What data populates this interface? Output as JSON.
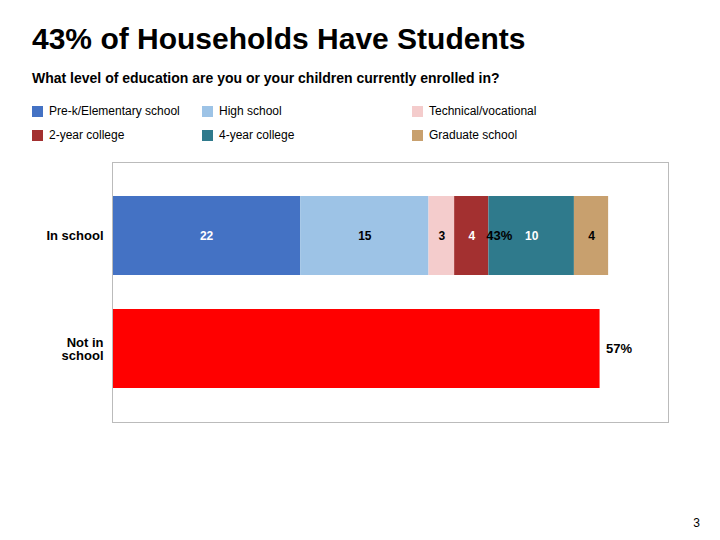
{
  "chart_data": {
    "type": "bar",
    "orientation": "horizontal",
    "stacked": true,
    "title": "43% of Households Have Students",
    "subtitle": "What level of education are you or your children currently enrolled in?",
    "categories": [
      "In school",
      "Not in\nschool"
    ],
    "series": [
      {
        "name": "Pre-k/Elementary school",
        "color": "#4472C4",
        "values": [
          22,
          null
        ]
      },
      {
        "name": "High school",
        "color": "#9DC3E6",
        "values": [
          15,
          null
        ]
      },
      {
        "name": "Technical/vocational",
        "color": "#F4CCCC",
        "values": [
          3,
          null
        ]
      },
      {
        "name": "2-year college",
        "color": "#A33030",
        "values": [
          4,
          null
        ]
      },
      {
        "name": "4-year college",
        "color": "#2F7A8C",
        "values": [
          10,
          null
        ]
      },
      {
        "name": "Graduate school",
        "color": "#C8A06E",
        "values": [
          4,
          null
        ]
      },
      {
        "color": "#FF0000",
        "values": [
          null,
          57
        ],
        "data_labels": false
      }
    ],
    "data_labels": true,
    "totals": [
      43,
      57
    ],
    "total_labels": [
      "43%",
      "57%"
    ],
    "xlim": [
      0,
      65
    ],
    "xticks": [],
    "tick_labels": "y",
    "grid": false,
    "legend": "top",
    "page_number": "3"
  }
}
